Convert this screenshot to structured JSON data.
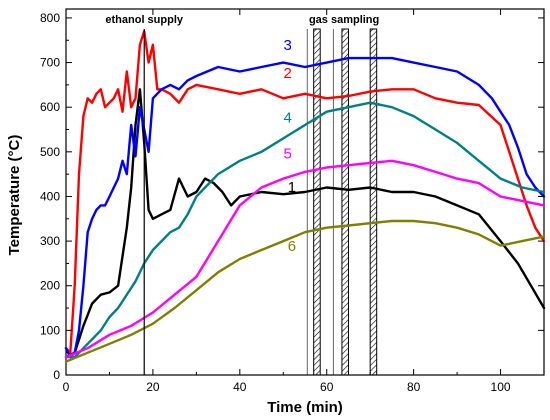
{
  "chart_data": {
    "type": "line",
    "xlabel": "Time (min)",
    "ylabel": "Temperature (°C)",
    "xlim": [
      0,
      110
    ],
    "ylim": [
      0,
      820
    ],
    "xticks": [
      0,
      20,
      40,
      60,
      80,
      100
    ],
    "yticks": [
      0,
      100,
      200,
      300,
      400,
      500,
      600,
      700,
      800
    ],
    "grid": false,
    "legend": "inline number labels next to curves",
    "annotations": [
      {
        "text": "ethanol supply",
        "x": 18
      },
      {
        "text": "gas sampling",
        "x": 64
      }
    ],
    "vertical_marker": {
      "x": 18,
      "label": "ethanol supply"
    },
    "hatched_bands": [
      {
        "x0": 57,
        "x1": 58.5
      },
      {
        "x0": 63.5,
        "x1": 65
      },
      {
        "x0": 70,
        "x1": 71.5
      }
    ],
    "thin_lines": [
      55.5,
      61.5
    ],
    "series": [
      {
        "name": "1",
        "color": "#000000",
        "label_at": [
          52,
          410
        ],
        "x": [
          0,
          2,
          4,
          6,
          8,
          10,
          12,
          14,
          15,
          16,
          17,
          18,
          19,
          20,
          22,
          24,
          26,
          28,
          30,
          32,
          34,
          36,
          38,
          40,
          45,
          50,
          55,
          60,
          65,
          70,
          75,
          80,
          85,
          90,
          95,
          100,
          104,
          107,
          110
        ],
        "y": [
          40,
          50,
          110,
          160,
          180,
          185,
          200,
          330,
          420,
          560,
          640,
          520,
          370,
          350,
          360,
          370,
          440,
          400,
          410,
          440,
          430,
          410,
          380,
          400,
          410,
          405,
          410,
          420,
          415,
          420,
          410,
          410,
          400,
          380,
          360,
          300,
          250,
          200,
          150
        ]
      },
      {
        "name": "2",
        "color": "#ff0000",
        "label_at": [
          51,
          665
        ],
        "x": [
          0,
          1,
          2,
          3,
          4,
          5,
          6,
          7,
          8,
          9,
          10,
          11,
          12,
          13,
          14,
          15,
          16,
          17,
          18,
          19,
          20,
          21,
          22,
          24,
          26,
          28,
          30,
          35,
          40,
          45,
          50,
          55,
          60,
          65,
          70,
          75,
          80,
          85,
          90,
          95,
          100,
          102,
          104,
          106,
          108,
          110
        ],
        "y": [
          60,
          50,
          200,
          450,
          580,
          620,
          610,
          630,
          640,
          600,
          610,
          620,
          640,
          590,
          680,
          600,
          620,
          740,
          770,
          700,
          740,
          640,
          640,
          630,
          610,
          640,
          650,
          640,
          630,
          640,
          620,
          630,
          620,
          625,
          635,
          640,
          640,
          620,
          610,
          605,
          560,
          500,
          440,
          380,
          330,
          300
        ]
      },
      {
        "name": "3",
        "color": "#0000ff",
        "label_at": [
          51,
          728
        ],
        "x": [
          0,
          1,
          2,
          3,
          4,
          5,
          6,
          7,
          8,
          9,
          10,
          11,
          12,
          13,
          14,
          15,
          16,
          17,
          18,
          19,
          20,
          22,
          24,
          26,
          28,
          30,
          35,
          40,
          45,
          50,
          55,
          60,
          65,
          70,
          75,
          80,
          85,
          90,
          95,
          98,
          100,
          102,
          104,
          106,
          108,
          110
        ],
        "y": [
          60,
          40,
          50,
          100,
          200,
          320,
          350,
          370,
          380,
          380,
          400,
          420,
          440,
          480,
          450,
          560,
          490,
          600,
          550,
          500,
          620,
          640,
          650,
          640,
          660,
          670,
          690,
          680,
          690,
          700,
          690,
          700,
          710,
          710,
          710,
          700,
          690,
          680,
          650,
          620,
          590,
          560,
          510,
          450,
          420,
          400
        ]
      },
      {
        "name": "4",
        "color": "#008080",
        "label_at": [
          51,
          566
        ],
        "x": [
          0,
          2,
          4,
          6,
          8,
          10,
          12,
          14,
          16,
          18,
          20,
          22,
          24,
          26,
          28,
          30,
          35,
          40,
          45,
          50,
          55,
          60,
          65,
          70,
          75,
          80,
          85,
          90,
          95,
          100,
          105,
          110
        ],
        "y": [
          40,
          40,
          60,
          80,
          100,
          130,
          150,
          180,
          210,
          250,
          280,
          300,
          320,
          330,
          360,
          400,
          450,
          480,
          500,
          530,
          560,
          590,
          600,
          610,
          600,
          580,
          550,
          520,
          480,
          440,
          420,
          410
        ]
      },
      {
        "name": "5",
        "color": "#ff00ff",
        "label_at": [
          51,
          485
        ],
        "x": [
          0,
          5,
          10,
          15,
          20,
          25,
          30,
          35,
          40,
          45,
          50,
          55,
          60,
          65,
          70,
          75,
          80,
          85,
          90,
          95,
          100,
          105,
          110
        ],
        "y": [
          40,
          60,
          90,
          110,
          140,
          180,
          220,
          300,
          380,
          420,
          440,
          455,
          465,
          470,
          475,
          480,
          470,
          455,
          440,
          430,
          400,
          390,
          380
        ]
      },
      {
        "name": "6",
        "color": "#808000",
        "label_at": [
          52,
          278
        ],
        "x": [
          0,
          5,
          10,
          15,
          20,
          25,
          30,
          35,
          40,
          45,
          50,
          55,
          60,
          65,
          70,
          75,
          80,
          85,
          90,
          95,
          100,
          105,
          110
        ],
        "y": [
          30,
          50,
          70,
          90,
          115,
          150,
          190,
          230,
          260,
          280,
          300,
          320,
          330,
          335,
          340,
          345,
          345,
          340,
          330,
          315,
          290,
          300,
          310
        ]
      }
    ]
  }
}
